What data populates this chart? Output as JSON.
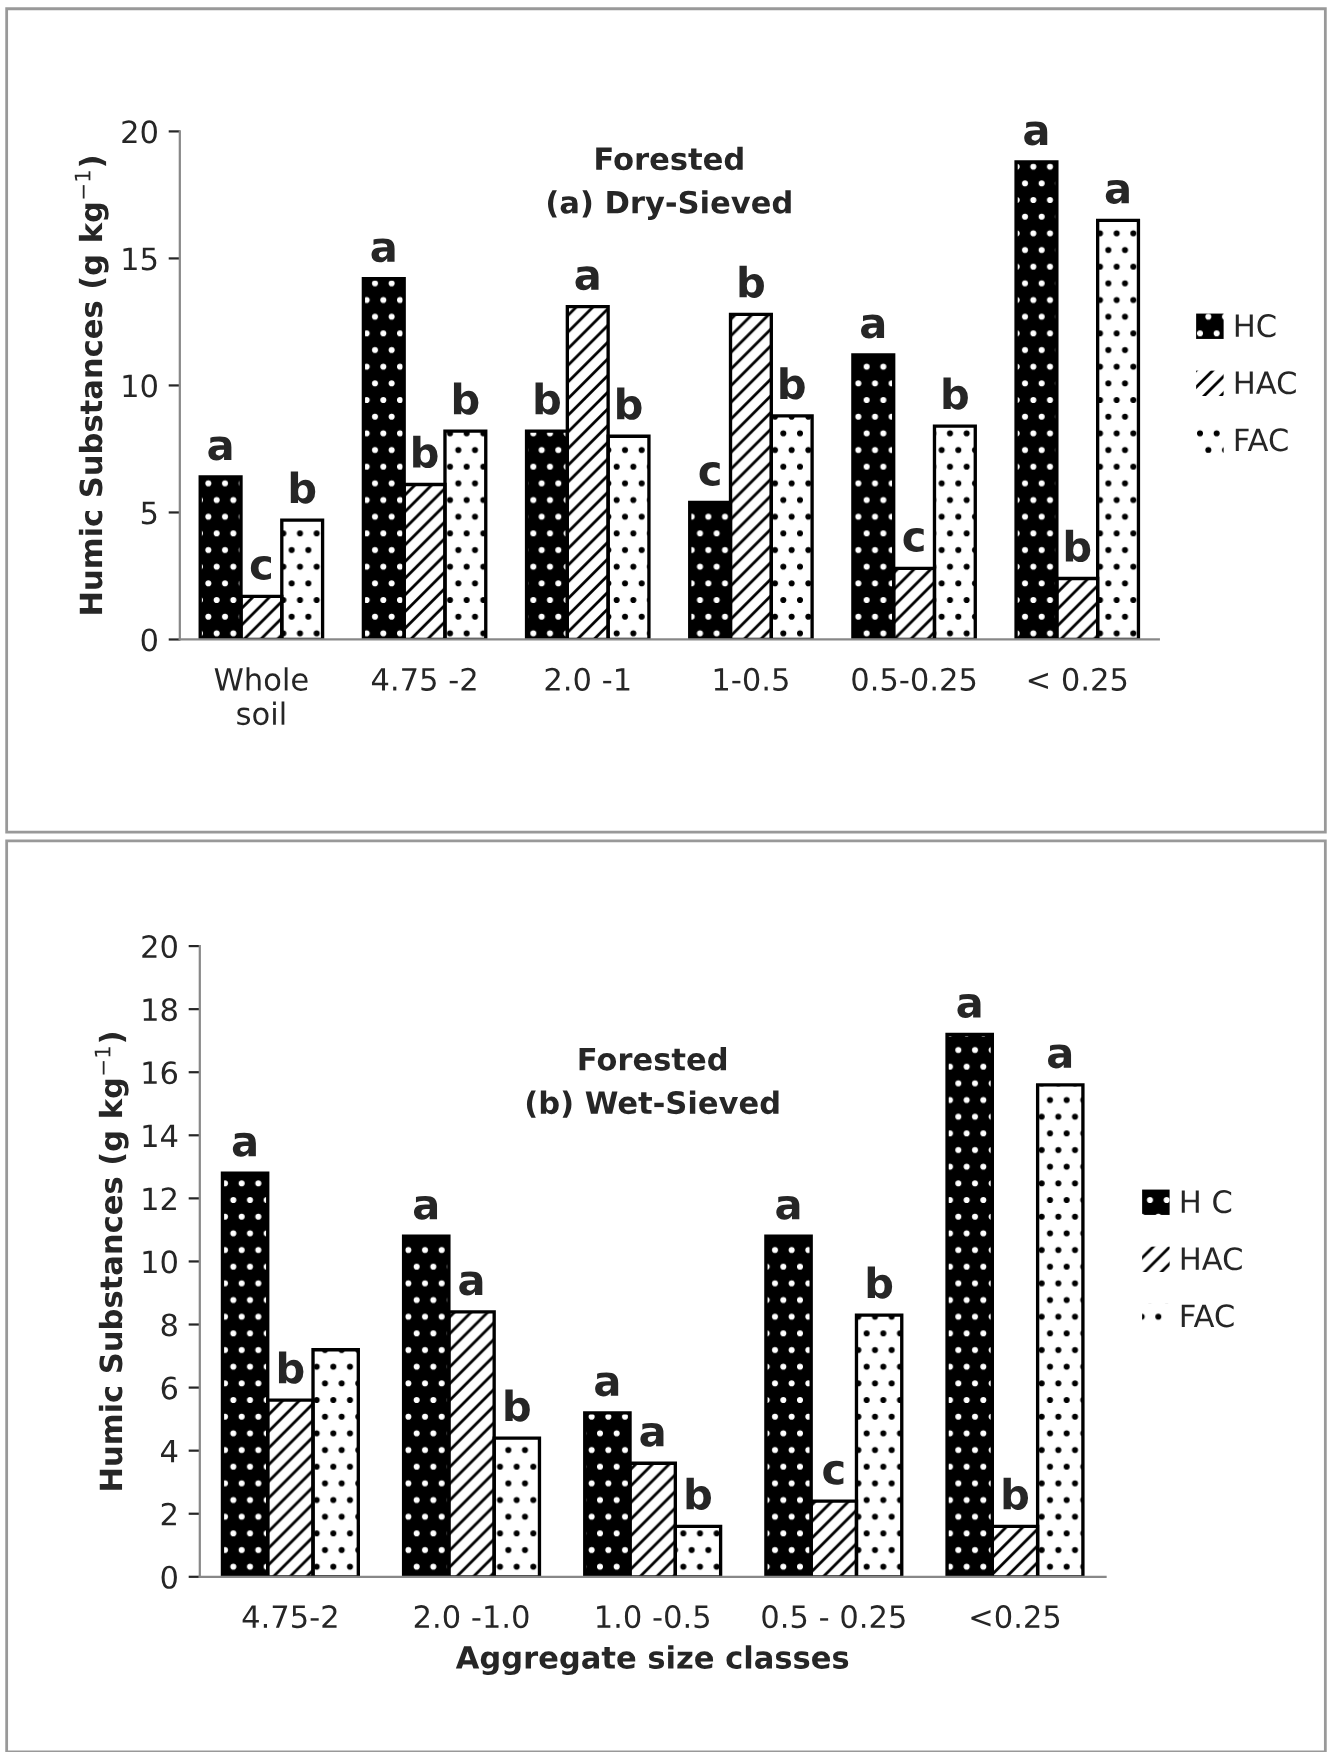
{
  "chart_data": [
    {
      "type": "bar",
      "title": "Forested",
      "subtitle": "(a) Dry-Sieved",
      "ylabel": "Humic Substances (g kg$^{−1}$)",
      "categories": [
        "Whole\nsoil",
        "4.75 -2",
        "2.0 -1",
        "1-0.5",
        "0.5-0.25",
        "< 0.25"
      ],
      "series": [
        {
          "name": "HC",
          "color": "#000000",
          "values": [
            6.4,
            14.2,
            8.2,
            5.4,
            11.2,
            18.8
          ],
          "value_labels": [
            "a",
            "a",
            "b",
            "c",
            "a",
            "a"
          ]
        },
        {
          "name": "HAC",
          "color": "#ffffff",
          "values": [
            1.7,
            6.1,
            13.1,
            12.8,
            2.8,
            2.4
          ],
          "value_labels": [
            "c",
            "b",
            "a",
            "b",
            "c",
            "b"
          ]
        },
        {
          "name": "FAC",
          "color": "#ffffff",
          "values": [
            4.7,
            8.2,
            8.0,
            8.8,
            8.4,
            16.5
          ],
          "value_labels": [
            "b",
            "b",
            "b",
            "b",
            "b",
            "a"
          ]
        }
      ],
      "ylim": [
        0,
        20
      ],
      "yticks": [
        0,
        5,
        10,
        15,
        20
      ],
      "legend": "right",
      "grid": false
    },
    {
      "type": "bar",
      "title": "Forested",
      "subtitle": "(b) Wet-Sieved",
      "xlabel": "Aggregate size classes",
      "ylabel": "Humic Substances (g kg$^{−1}$)",
      "categories": [
        "4.75-2",
        "2.0 -1.0",
        "1.0 -0.5",
        "0.5 - 0.25",
        "<0.25"
      ],
      "series": [
        {
          "name": "H C",
          "color": "#000000",
          "values": [
            12.8,
            10.8,
            5.2,
            10.8,
            17.2
          ],
          "value_labels": [
            "a",
            "a",
            "a",
            "a",
            "a"
          ]
        },
        {
          "name": "HAC",
          "color": "#ffffff",
          "values": [
            5.6,
            8.4,
            3.6,
            2.4,
            1.6
          ],
          "value_labels": [
            "b",
            "a",
            "a",
            "c",
            "b"
          ]
        },
        {
          "name": "FAC",
          "color": "#ffffff",
          "values": [
            7.2,
            4.4,
            1.6,
            8.3,
            15.6
          ],
          "value_labels": [
            null,
            "b",
            "b",
            "b",
            "a"
          ]
        }
      ],
      "ylim": [
        0,
        20
      ],
      "yticks": [
        0,
        2,
        4,
        6,
        8,
        10,
        12,
        14,
        16,
        18,
        20
      ],
      "legend": "right",
      "grid": false
    }
  ]
}
